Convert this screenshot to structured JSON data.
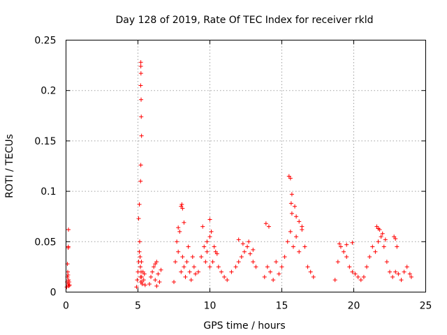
{
  "chart_data": {
    "type": "scatter",
    "title": "Day 128 of 2019, Rate Of TEC Index for receiver rkld",
    "xlabel": "GPS time / hours",
    "ylabel": "ROTI / TECUs",
    "xlim": [
      0,
      25
    ],
    "ylim": [
      0,
      0.25
    ],
    "xticks": [
      0,
      5,
      10,
      15,
      20,
      25
    ],
    "xtick_labels": [
      "0",
      "5",
      "10",
      "15",
      "20",
      "25"
    ],
    "yticks": [
      0,
      0.05,
      0.1,
      0.15,
      0.2,
      0.25
    ],
    "ytick_labels": [
      "0",
      "0.05",
      "0.1",
      "0.15",
      "0.2",
      "0.25"
    ],
    "grid": true,
    "marker": "+",
    "color": "#ff0000",
    "series": [
      {
        "name": "ROTI",
        "x": [
          0.05,
          0.08,
          0.1,
          0.12,
          0.15,
          0.18,
          0.2,
          0.22,
          0.25,
          0.15,
          0.16,
          0.17,
          0.1,
          0.14,
          4.9,
          4.95,
          5.0,
          5.05,
          5.1,
          5.12,
          5.15,
          5.17,
          5.18,
          5.2,
          5.22,
          5.24,
          5.26,
          5.28,
          5.3,
          5.35,
          5.4,
          5.45,
          5.5,
          5.2,
          5.2,
          5.21,
          5.19,
          5.22,
          5.23,
          5.25,
          5.2,
          5.18,
          5.1,
          5.05,
          5.8,
          5.9,
          6.0,
          6.1,
          6.2,
          6.3,
          6.4,
          6.5,
          6.6,
          6.2,
          6.3,
          7.5,
          7.6,
          7.7,
          7.8,
          7.9,
          8.0,
          8.1,
          8.2,
          8.3,
          8.4,
          8.5,
          8.6,
          8.7,
          8.8,
          8.9,
          9.0,
          8.0,
          8.05,
          8.1,
          7.8,
          8.2,
          9.2,
          9.4,
          9.6,
          9.8,
          10.0,
          10.2,
          10.4,
          10.6,
          10.8,
          11.0,
          9.5,
          9.8,
          10.0,
          10.1,
          10.3,
          10.5,
          9.7,
          10.0,
          11.2,
          11.5,
          11.8,
          12.0,
          12.2,
          12.4,
          12.6,
          12.8,
          13.0,
          13.2,
          12.0,
          12.3,
          12.7,
          13.0,
          13.8,
          14.0,
          14.2,
          14.4,
          14.6,
          14.8,
          15.0,
          15.2,
          15.4,
          15.6,
          15.8,
          16.0,
          16.2,
          16.4,
          16.6,
          16.8,
          17.0,
          17.2,
          13.9,
          14.1,
          15.5,
          15.6,
          15.7,
          15.65,
          15.7,
          16.0,
          16.2,
          16.4,
          15.9,
          18.7,
          18.9,
          19.1,
          19.3,
          19.5,
          19.7,
          19.9,
          20.1,
          20.3,
          20.5,
          19.0,
          19.5,
          19.9,
          20.7,
          20.9,
          21.1,
          21.3,
          21.5,
          21.7,
          21.9,
          22.1,
          22.3,
          22.5,
          21.6,
          21.7,
          21.8,
          22.0,
          22.2,
          22.7,
          22.9,
          23.1,
          23.3,
          23.5,
          23.7,
          23.9,
          24.0,
          22.8,
          22.9,
          23.0
        ],
        "y": [
          0.005,
          0.01,
          0.015,
          0.02,
          0.008,
          0.012,
          0.006,
          0.01,
          0.007,
          0.044,
          0.045,
          0.062,
          0.028,
          0.017,
          0.005,
          0.012,
          0.02,
          0.03,
          0.04,
          0.05,
          0.035,
          0.025,
          0.015,
          0.01,
          0.02,
          0.03,
          0.015,
          0.01,
          0.008,
          0.02,
          0.012,
          0.018,
          0.007,
          0.228,
          0.224,
          0.217,
          0.205,
          0.191,
          0.174,
          0.155,
          0.126,
          0.11,
          0.087,
          0.073,
          0.008,
          0.015,
          0.02,
          0.025,
          0.012,
          0.03,
          0.018,
          0.01,
          0.022,
          0.028,
          0.006,
          0.01,
          0.03,
          0.05,
          0.04,
          0.06,
          0.02,
          0.035,
          0.025,
          0.015,
          0.03,
          0.045,
          0.02,
          0.012,
          0.035,
          0.025,
          0.018,
          0.085,
          0.087,
          0.083,
          0.064,
          0.069,
          0.02,
          0.035,
          0.045,
          0.04,
          0.055,
          0.03,
          0.04,
          0.025,
          0.02,
          0.015,
          0.065,
          0.05,
          0.072,
          0.06,
          0.045,
          0.038,
          0.03,
          0.025,
          0.012,
          0.02,
          0.025,
          0.03,
          0.035,
          0.04,
          0.045,
          0.038,
          0.03,
          0.025,
          0.052,
          0.048,
          0.05,
          0.042,
          0.015,
          0.025,
          0.02,
          0.012,
          0.03,
          0.018,
          0.025,
          0.035,
          0.05,
          0.06,
          0.045,
          0.055,
          0.04,
          0.065,
          0.045,
          0.025,
          0.02,
          0.015,
          0.068,
          0.065,
          0.115,
          0.113,
          0.097,
          0.088,
          0.078,
          0.075,
          0.07,
          0.062,
          0.085,
          0.012,
          0.03,
          0.045,
          0.04,
          0.035,
          0.025,
          0.02,
          0.018,
          0.015,
          0.012,
          0.048,
          0.047,
          0.049,
          0.015,
          0.025,
          0.035,
          0.045,
          0.04,
          0.05,
          0.055,
          0.045,
          0.03,
          0.02,
          0.065,
          0.063,
          0.062,
          0.058,
          0.052,
          0.015,
          0.02,
          0.018,
          0.012,
          0.02,
          0.025,
          0.018,
          0.015,
          0.055,
          0.053,
          0.045
        ]
      }
    ]
  }
}
